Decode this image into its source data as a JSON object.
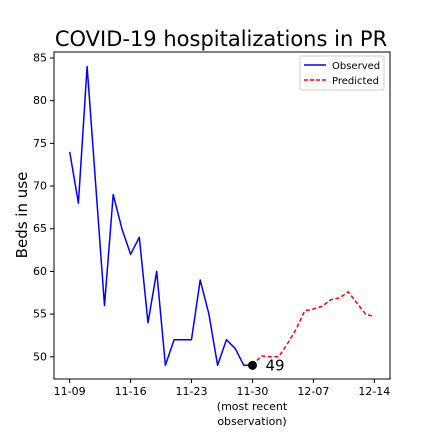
{
  "chart_data": {
    "type": "line",
    "title": "COVID-19 hospitalizations in PR",
    "xlabel": "",
    "ylabel": "Beds in use",
    "x_tick_labels": [
      "11-09",
      "11-16",
      "11-23",
      "11-30",
      "12-07",
      "12-14"
    ],
    "x_tick_days": [
      0,
      7,
      14,
      21,
      28,
      35
    ],
    "x_annotation": [
      "(most recent",
      "observation)"
    ],
    "y_ticks": [
      50,
      55,
      60,
      65,
      70,
      75,
      80,
      85
    ],
    "ylim": [
      47.4,
      85.7
    ],
    "xlim_days": [
      -1.8,
      36.8
    ],
    "grid": false,
    "legend_position": "top-right",
    "series": [
      {
        "name": "Observed",
        "style": "solid",
        "color": "#0000ff",
        "x_days": [
          0,
          1,
          2,
          3,
          4,
          5,
          6,
          7,
          8,
          9,
          10,
          11,
          12,
          13,
          14,
          15,
          16,
          17,
          18,
          19,
          20,
          21
        ],
        "values": [
          74,
          68,
          84,
          70,
          56,
          69,
          65,
          62,
          64,
          54,
          60,
          49,
          52,
          52,
          52,
          59,
          55,
          49,
          52,
          51,
          49,
          49
        ]
      },
      {
        "name": "Predicted",
        "style": "dashed",
        "color": "#ff0000",
        "x_days": [
          21,
          22,
          23,
          24,
          25,
          26,
          27,
          28,
          29,
          30,
          31,
          32,
          33,
          34,
          35
        ],
        "values": [
          49,
          50.1,
          50.0,
          50.0,
          51.5,
          53.2,
          55.4,
          55.6,
          55.9,
          56.7,
          56.9,
          57.6,
          56.3,
          55.0,
          54.7
        ]
      }
    ],
    "highlight_point": {
      "x_day": 21,
      "value": 49,
      "label": "49"
    }
  }
}
